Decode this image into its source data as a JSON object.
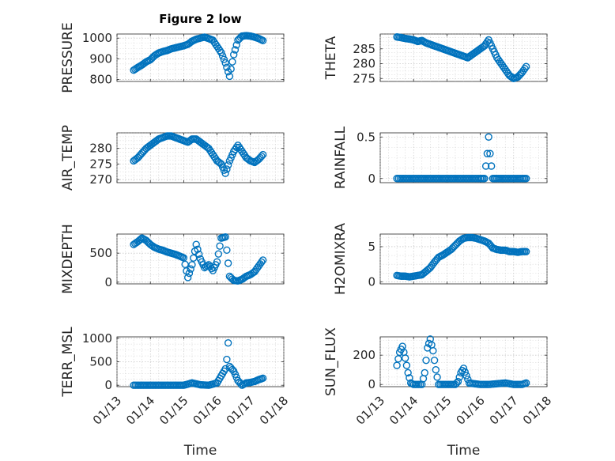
{
  "figure_title": "Figure 2 low",
  "colors": {
    "marker": "#0072BD",
    "axes": "#262626",
    "grid": "#bdbdbd"
  },
  "chart_data": [
    {
      "id": "pressure",
      "type": "scatter",
      "title": "Figure 2 low",
      "ylabel": "PRESSURE",
      "xlabel": "",
      "ylim": [
        790,
        1020
      ],
      "yticks": [
        800,
        900,
        1000
      ],
      "grid": true,
      "x": [
        "01/13 12:00",
        "01/13 15:00",
        "01/13 18:00",
        "01/13 21:00",
        "01/14 00:00",
        "01/14 03:00",
        "01/14 06:00",
        "01/14 09:00",
        "01/14 12:00",
        "01/14 15:00",
        "01/14 18:00",
        "01/14 21:00",
        "01/15 00:00",
        "01/15 03:00",
        "01/15 06:00",
        "01/15 09:00",
        "01/15 12:00",
        "01/15 15:00",
        "01/15 18:00",
        "01/15 21:00",
        "01/16 00:00",
        "01/16 03:00",
        "01/16 06:00",
        "01/16 09:00",
        "01/16 12:00",
        "01/16 15:00",
        "01/16 18:00",
        "01/16 21:00",
        "01/17 00:00",
        "01/17 03:00",
        "01/17 06:00",
        "01/17 09:00"
      ],
      "y": [
        845,
        858,
        870,
        885,
        895,
        915,
        928,
        935,
        940,
        948,
        953,
        958,
        963,
        970,
        985,
        995,
        1000,
        1005,
        998,
        990,
        960,
        930,
        880,
        815,
        920,
        990,
        1010,
        1012,
        1010,
        1005,
        998,
        988
      ]
    },
    {
      "id": "theta",
      "type": "scatter",
      "ylabel": "THETA",
      "xlabel": "",
      "ylim": [
        274,
        290
      ],
      "yticks": [
        275,
        280,
        285
      ],
      "grid": true,
      "x": [
        "01/13 12:00",
        "01/13 15:00",
        "01/13 18:00",
        "01/13 21:00",
        "01/14 00:00",
        "01/14 03:00",
        "01/14 06:00",
        "01/14 09:00",
        "01/14 12:00",
        "01/14 15:00",
        "01/14 18:00",
        "01/14 21:00",
        "01/15 00:00",
        "01/15 03:00",
        "01/15 06:00",
        "01/15 09:00",
        "01/15 12:00",
        "01/15 15:00",
        "01/15 18:00",
        "01/15 21:00",
        "01/16 00:00",
        "01/16 03:00",
        "01/16 06:00",
        "01/16 09:00",
        "01/16 12:00",
        "01/16 15:00",
        "01/16 18:00",
        "01/16 21:00",
        "01/17 00:00",
        "01/17 03:00",
        "01/17 06:00",
        "01/17 09:00"
      ],
      "y": [
        289,
        288.8,
        288.5,
        288.3,
        288,
        287.5,
        287.8,
        287,
        286.5,
        286,
        285.5,
        285,
        284.5,
        284,
        283.5,
        283,
        282.5,
        282,
        283,
        284,
        285,
        286,
        288,
        285,
        282,
        280,
        278,
        276,
        275,
        275.5,
        277,
        279
      ]
    },
    {
      "id": "air_temp",
      "type": "scatter",
      "ylabel": "AIR_TEMP",
      "xlabel": "",
      "ylim": [
        269,
        285
      ],
      "yticks": [
        270,
        275,
        280
      ],
      "grid": true,
      "x": [
        "01/13 12:00",
        "01/13 15:00",
        "01/13 18:00",
        "01/13 21:00",
        "01/14 00:00",
        "01/14 03:00",
        "01/14 06:00",
        "01/14 09:00",
        "01/14 12:00",
        "01/14 15:00",
        "01/14 18:00",
        "01/14 21:00",
        "01/15 00:00",
        "01/15 03:00",
        "01/15 06:00",
        "01/15 09:00",
        "01/15 12:00",
        "01/15 15:00",
        "01/15 18:00",
        "01/15 21:00",
        "01/16 00:00",
        "01/16 03:00",
        "01/16 06:00",
        "01/16 09:00",
        "01/16 12:00",
        "01/16 15:00",
        "01/16 18:00",
        "01/16 21:00",
        "01/17 00:00",
        "01/17 03:00",
        "01/17 06:00",
        "01/17 09:00"
      ],
      "y": [
        276,
        277,
        278.5,
        280,
        281,
        282,
        283,
        283.5,
        284,
        284,
        283.5,
        283,
        282.5,
        282,
        283,
        283,
        282,
        281,
        280,
        278,
        276,
        275,
        272,
        276,
        279,
        281,
        279,
        277,
        276,
        275.5,
        276.5,
        278
      ]
    },
    {
      "id": "rainfall",
      "type": "scatter",
      "ylabel": "RAINFALL",
      "xlabel": "",
      "ylim": [
        -0.05,
        0.55
      ],
      "yticks": [
        0,
        0.5
      ],
      "grid": true,
      "x": [
        "01/13 12:00",
        "01/13 18:00",
        "01/14 00:00",
        "01/14 06:00",
        "01/14 12:00",
        "01/14 18:00",
        "01/15 00:00",
        "01/15 06:00",
        "01/15 12:00",
        "01/15 18:00",
        "01/16 00:00",
        "01/16 03:00",
        "01/16 05:00",
        "01/16 06:00",
        "01/16 07:00",
        "01/16 09:00",
        "01/16 12:00",
        "01/16 18:00",
        "01/17 00:00",
        "01/17 06:00",
        "01/17 09:00"
      ],
      "y": [
        0,
        0,
        0,
        0,
        0,
        0,
        0,
        0,
        0,
        0,
        0,
        0,
        0.3,
        0.5,
        0.3,
        0,
        0,
        0,
        0,
        0,
        0
      ]
    },
    {
      "id": "mixdepth",
      "type": "scatter",
      "ylabel": "MIXDEPTH",
      "xlabel": "",
      "ylim": [
        -30,
        830
      ],
      "yticks": [
        0,
        500
      ],
      "grid": true,
      "x": [
        "01/13 12:00",
        "01/13 15:00",
        "01/13 18:00",
        "01/13 21:00",
        "01/14 00:00",
        "01/14 03:00",
        "01/14 06:00",
        "01/14 09:00",
        "01/14 12:00",
        "01/14 15:00",
        "01/14 18:00",
        "01/14 21:00",
        "01/15 00:00",
        "01/15 03:00",
        "01/15 06:00",
        "01/15 09:00",
        "01/15 12:00",
        "01/15 15:00",
        "01/15 18:00",
        "01/15 21:00",
        "01/16 00:00",
        "01/16 03:00",
        "01/16 06:00",
        "01/16 09:00",
        "01/16 12:00",
        "01/16 15:00",
        "01/16 18:00",
        "01/16 21:00",
        "01/17 00:00",
        "01/17 03:00",
        "01/17 06:00",
        "01/17 09:00"
      ],
      "y": [
        650,
        700,
        760,
        720,
        650,
        600,
        570,
        550,
        520,
        500,
        480,
        450,
        420,
        80,
        300,
        650,
        400,
        250,
        300,
        200,
        350,
        760,
        780,
        100,
        30,
        20,
        50,
        100,
        130,
        180,
        280,
        380
      ]
    },
    {
      "id": "h2omixra",
      "type": "scatter",
      "ylabel": "H2OMIXRA",
      "xlabel": "",
      "ylim": [
        -0.3,
        6.8
      ],
      "yticks": [
        0,
        5
      ],
      "grid": true,
      "x": [
        "01/13 12:00",
        "01/13 15:00",
        "01/13 18:00",
        "01/13 21:00",
        "01/14 00:00",
        "01/14 03:00",
        "01/14 06:00",
        "01/14 09:00",
        "01/14 12:00",
        "01/14 15:00",
        "01/14 18:00",
        "01/14 21:00",
        "01/15 00:00",
        "01/15 03:00",
        "01/15 06:00",
        "01/15 09:00",
        "01/15 12:00",
        "01/15 15:00",
        "01/15 18:00",
        "01/15 21:00",
        "01/16 00:00",
        "01/16 03:00",
        "01/16 06:00",
        "01/16 09:00",
        "01/16 12:00",
        "01/16 15:00",
        "01/16 18:00",
        "01/16 21:00",
        "01/17 00:00",
        "01/17 03:00",
        "01/17 06:00",
        "01/17 09:00"
      ],
      "y": [
        0.9,
        0.8,
        0.8,
        0.7,
        0.8,
        0.9,
        1.0,
        1.5,
        2.0,
        2.8,
        3.5,
        3.8,
        4.2,
        4.6,
        5.2,
        5.8,
        6.2,
        6.3,
        6.3,
        6.2,
        6.0,
        5.8,
        5.5,
        4.8,
        4.6,
        4.5,
        4.5,
        4.3,
        4.3,
        4.2,
        4.3,
        4.3
      ]
    },
    {
      "id": "terr_msl",
      "type": "scatter",
      "ylabel": "TERR_MSL",
      "xlabel": "Time",
      "ylim": [
        -30,
        1030
      ],
      "yticks": [
        0,
        500,
        1000
      ],
      "grid": true,
      "xticklabels": [
        "01/13",
        "01/14",
        "01/15",
        "01/16",
        "01/17",
        "01/18"
      ],
      "x": [
        "01/13 12:00",
        "01/13 18:00",
        "01/14 00:00",
        "01/14 06:00",
        "01/14 12:00",
        "01/14 18:00",
        "01/15 00:00",
        "01/15 06:00",
        "01/15 09:00",
        "01/15 12:00",
        "01/15 18:00",
        "01/16 00:00",
        "01/16 03:00",
        "01/16 06:00",
        "01/16 07:00",
        "01/16 08:00",
        "01/16 09:00",
        "01/16 12:00",
        "01/16 15:00",
        "01/16 18:00",
        "01/16 21:00",
        "01/17 00:00",
        "01/17 03:00",
        "01/17 06:00",
        "01/17 09:00"
      ],
      "y": [
        0,
        0,
        0,
        0,
        0,
        0,
        0,
        50,
        30,
        10,
        0,
        50,
        200,
        350,
        550,
        900,
        400,
        300,
        100,
        0,
        50,
        60,
        80,
        120,
        150
      ]
    },
    {
      "id": "sun_flux",
      "type": "scatter",
      "ylabel": "SUN_FLUX",
      "xlabel": "Time",
      "ylim": [
        -15,
        325
      ],
      "yticks": [
        0,
        200
      ],
      "grid": true,
      "xticklabels": [
        "01/13",
        "01/14",
        "01/15",
        "01/16",
        "01/17",
        "01/18"
      ],
      "x": [
        "01/13 12:00",
        "01/13 14:00",
        "01/13 16:00",
        "01/13 18:00",
        "01/13 20:00",
        "01/13 22:00",
        "01/14 00:00",
        "01/14 06:00",
        "01/14 08:00",
        "01/14 10:00",
        "01/14 12:00",
        "01/14 14:00",
        "01/14 16:00",
        "01/14 18:00",
        "01/15 00:00",
        "01/15 06:00",
        "01/15 08:00",
        "01/15 10:00",
        "01/15 12:00",
        "01/15 14:00",
        "01/15 16:00",
        "01/16 00:00",
        "01/16 06:00",
        "01/16 12:00",
        "01/16 18:00",
        "01/17 00:00",
        "01/17 06:00",
        "01/17 09:00"
      ],
      "y": [
        130,
        220,
        260,
        180,
        80,
        10,
        0,
        0,
        80,
        250,
        310,
        230,
        100,
        0,
        0,
        0,
        20,
        80,
        110,
        60,
        10,
        0,
        0,
        5,
        10,
        0,
        0,
        10
      ]
    }
  ]
}
